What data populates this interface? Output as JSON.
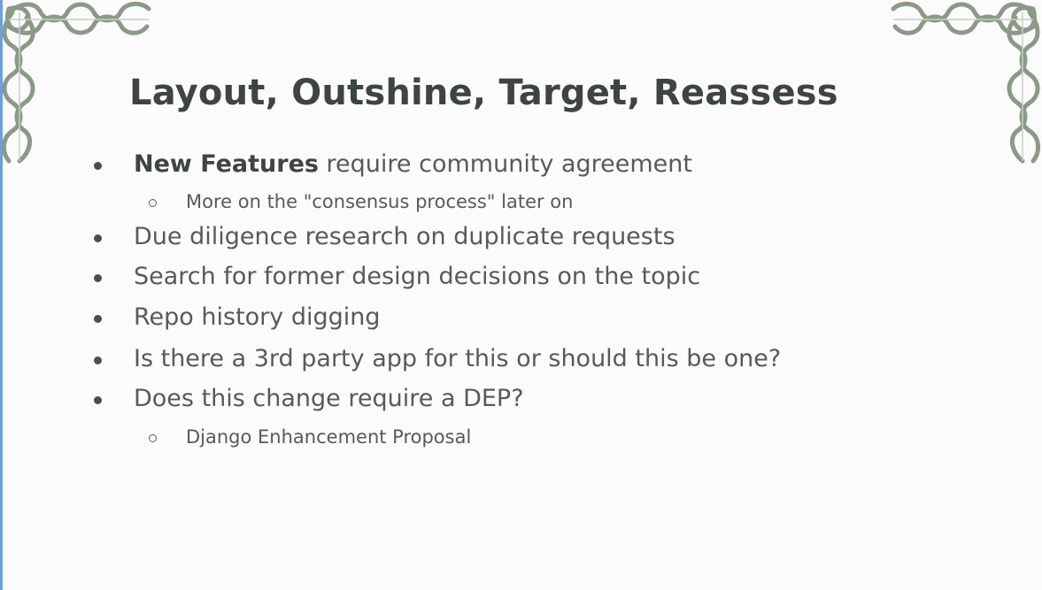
{
  "slide": {
    "title": "Layout, Outshine, Target, Reassess",
    "bullets": [
      {
        "bold": "New Features",
        "text": " require community agreement"
      },
      {
        "text": "More on the \"consensus process\" later on"
      },
      {
        "text": "Due diligence research on duplicate requests"
      },
      {
        "text": "Search for former design decisions on the topic"
      },
      {
        "text": "Repo history digging"
      },
      {
        "text": "Is there a 3rd party app for this or should this be one?"
      },
      {
        "text": "Does this change require a DEP?"
      },
      {
        "text": "Django Enhancement Proposal"
      }
    ]
  },
  "colors": {
    "title": "#3d4542",
    "body_text": "#555b58",
    "ornament": "#8a9a86"
  },
  "icons": {
    "corner_left": "celtic-knot-corner-icon",
    "corner_right": "celtic-knot-corner-icon"
  }
}
